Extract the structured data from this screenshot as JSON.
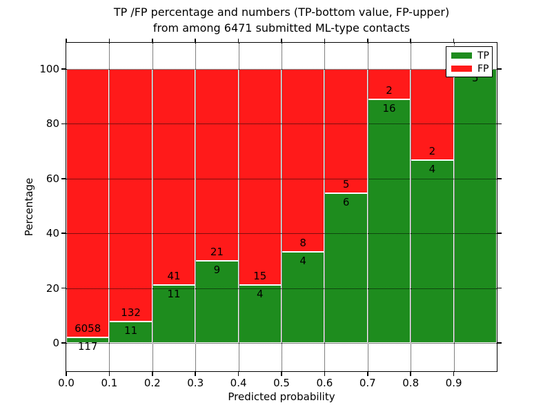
{
  "chart_data": {
    "type": "bar",
    "stacked": true,
    "title_line1": "TP /FP percentage and numbers (TP-bottom value, FP-upper)",
    "title_line2": "from among 6471 submitted ML-type contacts",
    "xlabel": "Predicted probability",
    "ylabel": "Percentage",
    "total_submitted": 6471,
    "x_tick_labels": [
      "0.0",
      "0.1",
      "0.2",
      "0.3",
      "0.4",
      "0.5",
      "0.6",
      "0.7",
      "0.8",
      "0.9"
    ],
    "y_tick_values": [
      0,
      20,
      40,
      60,
      80,
      100
    ],
    "xlim": [
      0.0,
      1.0
    ],
    "ylim": [
      -10.6,
      109.8
    ],
    "grid": {
      "style": "dotted",
      "color": "#000000",
      "axes": "both"
    },
    "colors": {
      "tp": "#1E8C1E",
      "fp": "#FF1A1A",
      "edge": "#FFFFFF"
    },
    "legend": {
      "position": "upper-right",
      "entries": [
        {
          "label": "TP",
          "color": "#1E8C1E"
        },
        {
          "label": "FP",
          "color": "#FF1A1A"
        }
      ]
    },
    "bins": [
      {
        "range": "0.0-0.1",
        "tp": 117,
        "fp": 6058,
        "tp_pct": 1.89
      },
      {
        "range": "0.1-0.2",
        "tp": 11,
        "fp": 132,
        "tp_pct": 7.69
      },
      {
        "range": "0.2-0.3",
        "tp": 11,
        "fp": 41,
        "tp_pct": 21.15
      },
      {
        "range": "0.3-0.4",
        "tp": 9,
        "fp": 21,
        "tp_pct": 30.0
      },
      {
        "range": "0.4-0.5",
        "tp": 4,
        "fp": 15,
        "tp_pct": 21.05
      },
      {
        "range": "0.5-0.6",
        "tp": 4,
        "fp": 8,
        "tp_pct": 33.33
      },
      {
        "range": "0.6-0.7",
        "tp": 6,
        "fp": 5,
        "tp_pct": 54.55
      },
      {
        "range": "0.7-0.8",
        "tp": 16,
        "fp": 2,
        "tp_pct": 88.89
      },
      {
        "range": "0.8-0.9",
        "tp": 4,
        "fp": 2,
        "tp_pct": 66.67
      },
      {
        "range": "0.9-1.0",
        "tp": 5,
        "fp": 0,
        "tp_pct": 100.0
      }
    ]
  }
}
